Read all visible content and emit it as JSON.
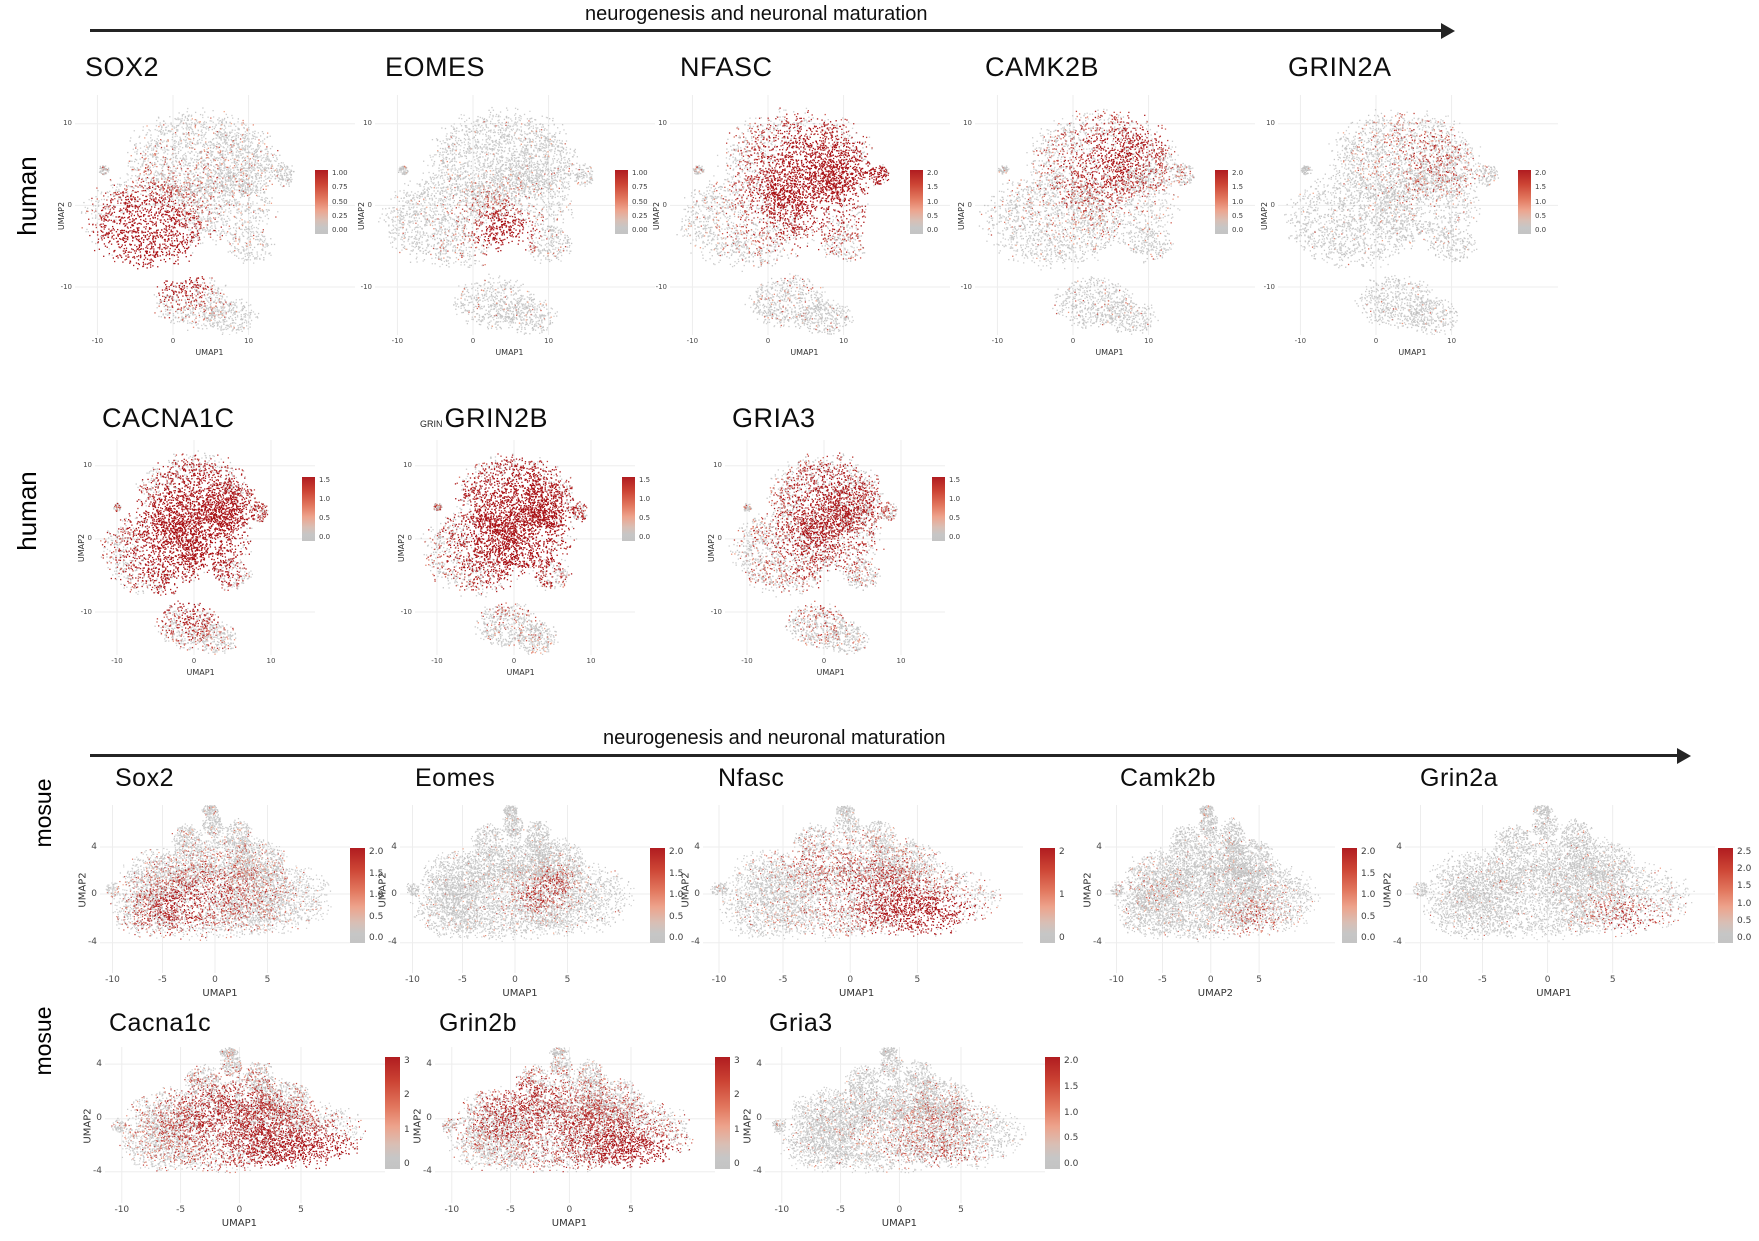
{
  "figure": {
    "arrows": [
      {
        "label": "neurogenesis and neuronal maturation"
      },
      {
        "label": "neurogenesis and neuronal maturation"
      }
    ],
    "row_labels": [
      "human",
      "human",
      "mosue",
      "mosue"
    ],
    "colors": {
      "point_low": "#c3c3c3",
      "point_high": "#b2182b",
      "colorbar_top": "#b01c20",
      "colorbar_bottom": "#c4c4c4",
      "arrow": "#242424"
    }
  },
  "chart_data": [
    {
      "type": "scatter",
      "species": "human",
      "gene": "SOX2",
      "title_prefix": "",
      "xlabel": "UMAP1",
      "ylabel": "UMAP2",
      "x_ticks": [
        "-10",
        "0",
        "10"
      ],
      "y_ticks": [
        "10",
        "0",
        "-10"
      ],
      "colorbar_ticks": [
        "1.00",
        "0.75",
        "0.50",
        "0.25",
        "0.00"
      ],
      "base_rate": 0.03,
      "expression_hotspots": [
        [
          0.22,
          0.55,
          0.2,
          0.9
        ],
        [
          0.3,
          0.68,
          0.16,
          0.8
        ],
        [
          0.4,
          0.82,
          0.12,
          0.35
        ],
        [
          0.5,
          0.3,
          0.28,
          0.1
        ]
      ],
      "expression_pattern": "high in lower-left progenitor cluster, low in upper cluster"
    },
    {
      "type": "scatter",
      "species": "human",
      "gene": "EOMES",
      "title_prefix": "",
      "xlabel": "UMAP1",
      "ylabel": "UMAP2",
      "x_ticks": [
        "-10",
        "0",
        "10"
      ],
      "y_ticks": [
        "10",
        "0",
        "-10"
      ],
      "colorbar_ticks": [
        "1.00",
        "0.75",
        "0.50",
        "0.25",
        "0.00"
      ],
      "base_rate": 0.04,
      "expression_hotspots": [
        [
          0.48,
          0.58,
          0.09,
          0.9
        ],
        [
          0.44,
          0.52,
          0.13,
          0.35
        ],
        [
          0.35,
          0.62,
          0.15,
          0.15
        ]
      ],
      "expression_pattern": "focal high expression in small central cluster"
    },
    {
      "type": "scatter",
      "species": "human",
      "gene": "NFASC",
      "title_prefix": "",
      "xlabel": "UMAP1",
      "ylabel": "UMAP2",
      "x_ticks": [
        "-10",
        "0",
        "10"
      ],
      "y_ticks": [
        "10",
        "0",
        "-10"
      ],
      "colorbar_ticks": [
        "2.0",
        "1.5",
        "1.0",
        "0.5",
        "0.0"
      ],
      "base_rate": 0.07,
      "expression_hotspots": [
        [
          0.5,
          0.25,
          0.26,
          0.65
        ],
        [
          0.55,
          0.4,
          0.22,
          0.5
        ],
        [
          0.745,
          0.33,
          0.06,
          0.5
        ],
        [
          0.4,
          0.5,
          0.2,
          0.25
        ]
      ],
      "expression_pattern": "broadly high across upper cluster and satellite"
    },
    {
      "type": "scatter",
      "species": "human",
      "gene": "CAMK2B",
      "title_prefix": "",
      "xlabel": "UMAP1",
      "ylabel": "UMAP2",
      "x_ticks": [
        "-10",
        "0",
        "10"
      ],
      "y_ticks": [
        "10",
        "0",
        "-10"
      ],
      "colorbar_ticks": [
        "2.0",
        "1.5",
        "1.0",
        "0.5",
        "0.0"
      ],
      "base_rate": 0.05,
      "expression_hotspots": [
        [
          0.5,
          0.25,
          0.22,
          0.4
        ],
        [
          0.4,
          0.35,
          0.18,
          0.3
        ],
        [
          0.6,
          0.18,
          0.15,
          0.35
        ]
      ],
      "expression_pattern": "moderate scattered expression in upper cluster"
    },
    {
      "type": "scatter",
      "species": "human",
      "gene": "GRIN2A",
      "title_prefix": "",
      "xlabel": "UMAP1",
      "ylabel": "UMAP2",
      "x_ticks": [
        "-10",
        "0",
        "10"
      ],
      "y_ticks": [
        "10",
        "0",
        "-10"
      ],
      "colorbar_ticks": [
        "2.0",
        "1.5",
        "1.0",
        "0.5",
        "0.0"
      ],
      "base_rate": 0.035,
      "expression_hotspots": [
        [
          0.5,
          0.2,
          0.18,
          0.28
        ],
        [
          0.6,
          0.3,
          0.15,
          0.15
        ]
      ],
      "expression_pattern": "sparse expression, mostly upper cluster"
    },
    {
      "type": "scatter",
      "species": "human",
      "gene": "CACNA1C",
      "title_prefix": "",
      "xlabel": "UMAP1",
      "ylabel": "UMAP2",
      "x_ticks": [
        "-10",
        "0",
        "10"
      ],
      "y_ticks": [
        "10",
        "0",
        "-10"
      ],
      "colorbar_ticks": [
        "1.5",
        "1.0",
        "0.5",
        "0.0"
      ],
      "base_rate": 0.12,
      "expression_hotspots": [
        [
          0.48,
          0.28,
          0.3,
          0.65
        ],
        [
          0.3,
          0.52,
          0.26,
          0.55
        ],
        [
          0.44,
          0.82,
          0.14,
          0.4
        ],
        [
          0.55,
          0.45,
          0.25,
          0.4
        ]
      ],
      "expression_pattern": "broad high expression across most clusters"
    },
    {
      "type": "scatter",
      "species": "human",
      "gene": "GRIN2B",
      "title_prefix": "GRIN",
      "xlabel": "UMAP1",
      "ylabel": "UMAP2",
      "x_ticks": [
        "-10",
        "0",
        "10"
      ],
      "y_ticks": [
        "10",
        "0",
        "-10"
      ],
      "colorbar_ticks": [
        "1.5",
        "1.0",
        "0.5",
        "0.0"
      ],
      "base_rate": 0.12,
      "expression_hotspots": [
        [
          0.48,
          0.25,
          0.3,
          0.7
        ],
        [
          0.35,
          0.5,
          0.25,
          0.5
        ],
        [
          0.55,
          0.45,
          0.22,
          0.4
        ]
      ],
      "expression_pattern": "broad high expression across upper and left clusters"
    },
    {
      "type": "scatter",
      "species": "human",
      "gene": "GRIA3",
      "title_prefix": "",
      "xlabel": "UMAP1",
      "ylabel": "UMAP2",
      "x_ticks": [
        "-10",
        "0",
        "10"
      ],
      "y_ticks": [
        "10",
        "0",
        "-10"
      ],
      "colorbar_ticks": [
        "1.5",
        "1.0",
        "0.5",
        "0.0"
      ],
      "base_rate": 0.1,
      "expression_hotspots": [
        [
          0.5,
          0.28,
          0.28,
          0.6
        ],
        [
          0.38,
          0.5,
          0.24,
          0.35
        ],
        [
          0.44,
          0.82,
          0.12,
          0.2
        ]
      ],
      "expression_pattern": "broad moderate-high expression across upper cluster"
    },
    {
      "type": "scatter",
      "species": "mouse",
      "gene": "Sox2",
      "title_prefix": "",
      "xlabel": "UMAP1",
      "ylabel": "UMAP2",
      "x_ticks": [
        "-10",
        "-5",
        "0",
        "5"
      ],
      "y_ticks": [
        "4",
        "0",
        "-4"
      ],
      "colorbar_ticks": [
        "2.0",
        "1.5",
        "1.0",
        "0.5",
        "0.0"
      ],
      "base_rate": 0.04,
      "expression_hotspots": [
        [
          0.35,
          0.55,
          0.22,
          0.35
        ],
        [
          0.55,
          0.5,
          0.25,
          0.22
        ],
        [
          0.25,
          0.65,
          0.15,
          0.3
        ]
      ],
      "expression_pattern": "scattered moderate expression across central clusters"
    },
    {
      "type": "scatter",
      "species": "mouse",
      "gene": "Eomes",
      "title_prefix": "",
      "xlabel": "UMAP1",
      "ylabel": "UMAP2",
      "x_ticks": [
        "-10",
        "-5",
        "0",
        "5"
      ],
      "y_ticks": [
        "4",
        "0",
        "-4"
      ],
      "colorbar_ticks": [
        "2.0",
        "1.5",
        "1.0",
        "0.5",
        "0.0"
      ],
      "base_rate": 0.03,
      "expression_hotspots": [
        [
          0.55,
          0.55,
          0.12,
          0.4
        ],
        [
          0.62,
          0.45,
          0.09,
          0.3
        ]
      ],
      "expression_pattern": "sparse focal expression right of center"
    },
    {
      "type": "scatter",
      "species": "mouse",
      "gene": "Nfasc",
      "title_prefix": "",
      "xlabel": "UMAP1",
      "ylabel": "UMAP2",
      "x_ticks": [
        "-10",
        "-5",
        "0",
        "5"
      ],
      "y_ticks": [
        "4",
        "0",
        "-4"
      ],
      "colorbar_ticks": [
        "2",
        "1",
        "0"
      ],
      "base_rate": 0.05,
      "expression_hotspots": [
        [
          0.6,
          0.6,
          0.22,
          0.6
        ],
        [
          0.75,
          0.7,
          0.16,
          0.6
        ],
        [
          0.45,
          0.35,
          0.18,
          0.25
        ],
        [
          0.3,
          0.3,
          0.1,
          0.2
        ]
      ],
      "expression_pattern": "high in lower-right region"
    },
    {
      "type": "scatter",
      "species": "mouse",
      "gene": "Camk2b",
      "title_prefix": "",
      "xlabel": "UMAP2",
      "ylabel": "UMAP2",
      "x_ticks": [
        "-10",
        "-5",
        "0",
        "5"
      ],
      "y_ticks": [
        "4",
        "0",
        "-4"
      ],
      "colorbar_ticks": [
        "2.0",
        "1.5",
        "1.0",
        "0.5",
        "0.0"
      ],
      "base_rate": 0.035,
      "expression_hotspots": [
        [
          0.65,
          0.7,
          0.15,
          0.35
        ],
        [
          0.2,
          0.5,
          0.12,
          0.12
        ]
      ],
      "expression_pattern": "sparse expression, lower-right region"
    },
    {
      "type": "scatter",
      "species": "mouse",
      "gene": "Grin2a",
      "title_prefix": "",
      "xlabel": "UMAP1",
      "ylabel": "UMAP2",
      "x_ticks": [
        "-10",
        "-5",
        "0",
        "5"
      ],
      "y_ticks": [
        "4",
        "0",
        "-4"
      ],
      "colorbar_ticks": [
        "2.5",
        "2.0",
        "1.5",
        "1.0",
        "0.5",
        "0.0"
      ],
      "base_rate": 0.03,
      "expression_hotspots": [
        [
          0.75,
          0.7,
          0.13,
          0.5
        ],
        [
          0.65,
          0.6,
          0.1,
          0.2
        ]
      ],
      "expression_pattern": "sparse expression concentrated lower-right"
    },
    {
      "type": "scatter",
      "species": "mouse",
      "gene": "Cacna1c",
      "title_prefix": "",
      "xlabel": "UMAP1",
      "ylabel": "UMAP2",
      "x_ticks": [
        "-10",
        "-5",
        "0",
        "5"
      ],
      "y_ticks": [
        "4",
        "0",
        "-4"
      ],
      "colorbar_ticks": [
        "3",
        "2",
        "1",
        "0"
      ],
      "base_rate": 0.1,
      "expression_hotspots": [
        [
          0.6,
          0.62,
          0.28,
          0.6
        ],
        [
          0.8,
          0.72,
          0.15,
          0.7
        ],
        [
          0.3,
          0.45,
          0.2,
          0.3
        ],
        [
          0.45,
          0.3,
          0.15,
          0.3
        ]
      ],
      "expression_pattern": "broad high expression, strongest lower-right"
    },
    {
      "type": "scatter",
      "species": "mouse",
      "gene": "Grin2b",
      "title_prefix": "",
      "xlabel": "UMAP1",
      "ylabel": "UMAP2",
      "x_ticks": [
        "-10",
        "-5",
        "0",
        "5"
      ],
      "y_ticks": [
        "4",
        "0",
        "-4"
      ],
      "colorbar_ticks": [
        "3",
        "2",
        "1",
        "0"
      ],
      "base_rate": 0.1,
      "expression_hotspots": [
        [
          0.55,
          0.55,
          0.3,
          0.5
        ],
        [
          0.75,
          0.72,
          0.16,
          0.75
        ],
        [
          0.3,
          0.3,
          0.15,
          0.4
        ],
        [
          0.2,
          0.5,
          0.12,
          0.3
        ]
      ],
      "expression_pattern": "broad high expression, strongest lower-right"
    },
    {
      "type": "scatter",
      "species": "mouse",
      "gene": "Gria3",
      "title_prefix": "",
      "xlabel": "UMAP1",
      "ylabel": "UMAP2",
      "x_ticks": [
        "-10",
        "-5",
        "0",
        "5"
      ],
      "y_ticks": [
        "4",
        "0",
        "-4"
      ],
      "colorbar_ticks": [
        "2.0",
        "1.5",
        "1.0",
        "0.5",
        "0.0"
      ],
      "base_rate": 0.04,
      "expression_hotspots": [
        [
          0.55,
          0.55,
          0.2,
          0.22
        ],
        [
          0.7,
          0.4,
          0.12,
          0.2
        ],
        [
          0.65,
          0.7,
          0.12,
          0.25
        ]
      ],
      "expression_pattern": "sparse scattered expression, center and right"
    }
  ]
}
